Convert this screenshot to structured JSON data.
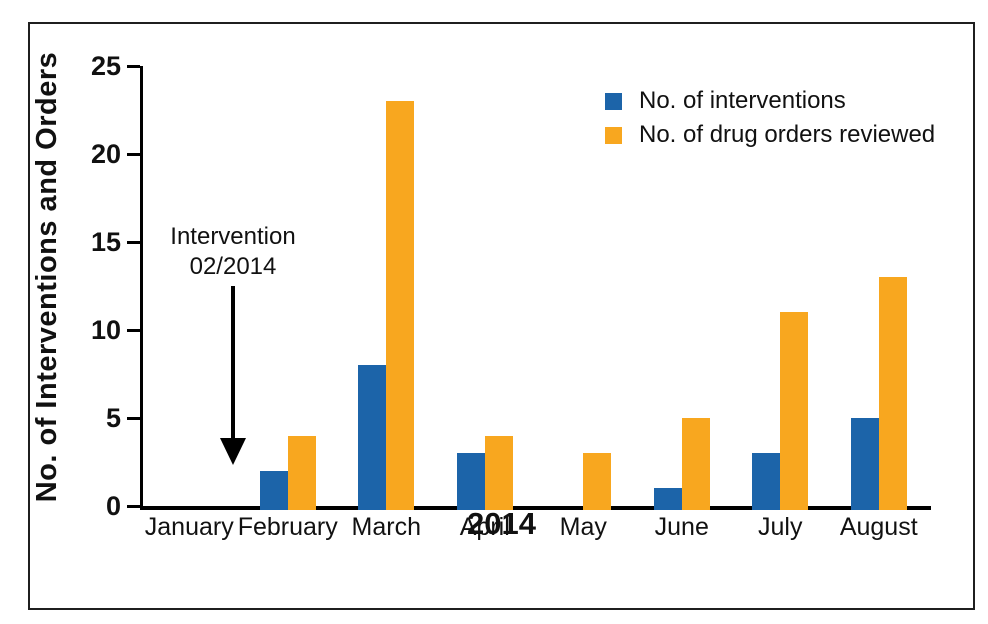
{
  "chart_data": {
    "type": "bar",
    "title": "",
    "categories": [
      "January",
      "February",
      "March",
      "April",
      "May",
      "June",
      "July",
      "August"
    ],
    "series": [
      {
        "key": "interventions",
        "name": "No. of interventions",
        "color": "#1C64A9",
        "values": [
          0,
          2,
          8,
          3,
          0,
          1,
          3,
          5
        ]
      },
      {
        "key": "drug-orders-reviewed",
        "name": "No. of drug orders reviewed",
        "color": "#F8A71F",
        "values": [
          0,
          4,
          23,
          4,
          3,
          5,
          11,
          13
        ]
      }
    ],
    "xlabel": "2014",
    "ylabel": "No. of Interventions and Orders",
    "ylim": [
      0,
      25
    ],
    "yticks": [
      0,
      5,
      10,
      15,
      20,
      25
    ],
    "grid": false,
    "legend_position": "top-right",
    "annotation": {
      "line1": "Intervention",
      "line2": "02/2014",
      "arrow": "down",
      "arrow_points_to": "February baseline"
    },
    "colors": {
      "axis": "#000000",
      "text": "#111111",
      "frame_border": "#1f1f1f",
      "background": "#ffffff"
    }
  }
}
